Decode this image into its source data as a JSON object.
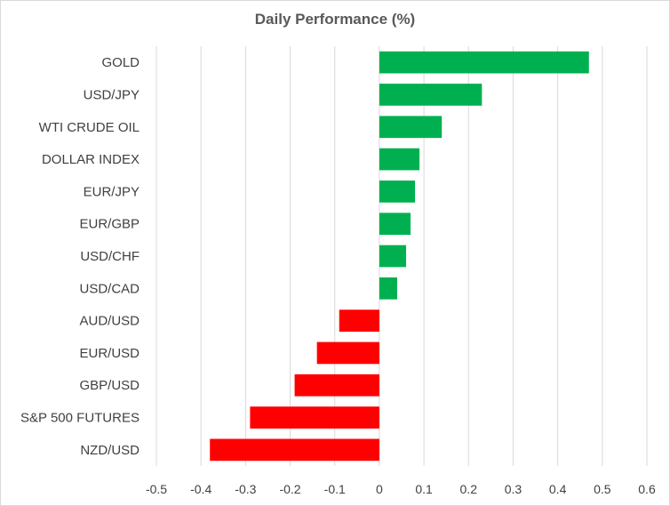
{
  "chart_data": {
    "type": "bar",
    "orientation": "horizontal",
    "title": "Daily Performance (%)",
    "xlabel": "",
    "ylabel": "",
    "xlim": [
      -0.5,
      0.6
    ],
    "xticks": [
      -0.5,
      -0.4,
      -0.3,
      -0.2,
      -0.1,
      0,
      0.1,
      0.2,
      0.3,
      0.4,
      0.5,
      0.6
    ],
    "xtick_labels": [
      "-0.5",
      "-0.4",
      "-0.3",
      "-0.2",
      "-0.1",
      "0",
      "0.1",
      "0.2",
      "0.3",
      "0.4",
      "0.5",
      "0.6"
    ],
    "grid": "vertical",
    "legend": "none",
    "colors": {
      "positive": "#00b050",
      "negative": "#ff0000",
      "grid": "#d9d9d9"
    },
    "categories": [
      "GOLD",
      "USD/JPY",
      "WTI CRUDE OIL",
      "DOLLAR INDEX",
      "EUR/JPY",
      "EUR/GBP",
      "USD/CHF",
      "USD/CAD",
      "AUD/USD",
      "EUR/USD",
      "GBP/USD",
      "S&P 500 FUTURES",
      "NZD/USD"
    ],
    "values": [
      0.47,
      0.23,
      0.14,
      0.09,
      0.08,
      0.07,
      0.06,
      0.04,
      -0.09,
      -0.14,
      -0.19,
      -0.29,
      -0.38
    ]
  }
}
